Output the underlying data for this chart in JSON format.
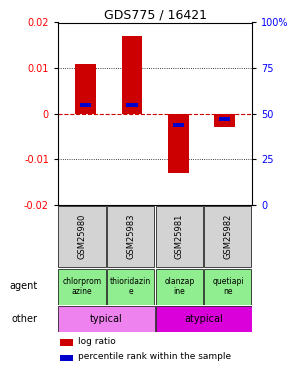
{
  "title": "GDS775 / 16421",
  "samples": [
    "GSM25980",
    "GSM25983",
    "GSM25981",
    "GSM25982"
  ],
  "log_ratio": [
    0.011,
    0.017,
    -0.013,
    -0.003
  ],
  "percentile_rank": [
    55,
    55,
    44,
    47
  ],
  "agent_labels": [
    "chlorprom\nazine",
    "thioridazin\ne",
    "olanzap\nine",
    "quetiapi\nne"
  ],
  "agent_colors": [
    "#90EE90",
    "#90EE90",
    "#90EE90",
    "#90EE90"
  ],
  "other_items": [
    {
      "label": "typical",
      "color": "#EE82EE",
      "start": 0,
      "end": 2
    },
    {
      "label": "atypical",
      "color": "#DA00DA",
      "start": 2,
      "end": 4
    }
  ],
  "ylim": [
    -0.02,
    0.02
  ],
  "yticks_left": [
    -0.02,
    -0.01,
    0,
    0.01,
    0.02
  ],
  "yticks_right": [
    0,
    25,
    50,
    75,
    100
  ],
  "bar_color": "#CC0000",
  "percentile_color": "#0000CC",
  "bar_width": 0.45,
  "zero_line_color": "#CC0000",
  "sample_bg": "#D3D3D3",
  "title_fontsize": 9,
  "tick_fontsize": 7,
  "label_fontsize": 7,
  "agent_fontsize": 5.5,
  "legend_fontsize": 6.5
}
